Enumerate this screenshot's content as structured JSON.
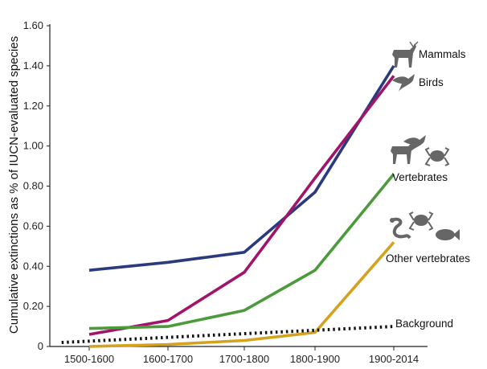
{
  "chart_data": {
    "type": "line",
    "categories": [
      "1500-1600",
      "1600-1700",
      "1700-1800",
      "1800-1900",
      "1900-2014"
    ],
    "x_positions": [
      1550,
      1650,
      1750,
      1850,
      1957
    ],
    "ylabel": "Cumulative extinctions as % of IUCN-evaluated species",
    "xlabel": "",
    "ylim": [
      0,
      1.6
    ],
    "yticks": [
      "0",
      "0.20",
      "0.40",
      "0.60",
      "0.80",
      "1.00",
      "1.20",
      "1.40",
      "1.60"
    ],
    "grid": false,
    "legend": "inline labels at line ends",
    "series": [
      {
        "name": "Mammals",
        "color": "#2b3a7e",
        "style": "solid",
        "points": [
          [
            1550,
            0.38
          ],
          [
            1650,
            0.42
          ],
          [
            1750,
            0.47
          ],
          [
            1850,
            0.77
          ],
          [
            1957,
            1.4
          ]
        ]
      },
      {
        "name": "Birds",
        "color": "#a0156a",
        "style": "solid",
        "points": [
          [
            1550,
            0.06
          ],
          [
            1650,
            0.13
          ],
          [
            1750,
            0.37
          ],
          [
            1850,
            0.84
          ],
          [
            1957,
            1.35
          ]
        ]
      },
      {
        "name": "Vertebrates",
        "color": "#4b9a3b",
        "style": "solid",
        "points": [
          [
            1550,
            0.09
          ],
          [
            1650,
            0.1
          ],
          [
            1750,
            0.18
          ],
          [
            1850,
            0.38
          ],
          [
            1957,
            0.86
          ]
        ]
      },
      {
        "name": "Other vertebrates",
        "color": "#d4a21e",
        "style": "solid",
        "points": [
          [
            1550,
            0.0
          ],
          [
            1650,
            0.01
          ],
          [
            1750,
            0.03
          ],
          [
            1850,
            0.07
          ],
          [
            1957,
            0.52
          ]
        ]
      },
      {
        "name": "Background",
        "color": "#111111",
        "style": "dotted",
        "points": [
          [
            1515,
            0.02
          ],
          [
            1957,
            0.1
          ]
        ]
      }
    ],
    "icons": [
      {
        "name": "deer-icon",
        "near": "Mammals"
      },
      {
        "name": "bird-icon",
        "near": "Birds"
      },
      {
        "name": "deer-icon",
        "near": "Vertebrates"
      },
      {
        "name": "bird-icon",
        "near": "Vertebrates"
      },
      {
        "name": "frog-icon",
        "near": "Vertebrates"
      },
      {
        "name": "snake-icon",
        "near": "Other vertebrates"
      },
      {
        "name": "frog-icon",
        "near": "Other vertebrates"
      },
      {
        "name": "fish-icon",
        "near": "Other vertebrates"
      }
    ]
  }
}
